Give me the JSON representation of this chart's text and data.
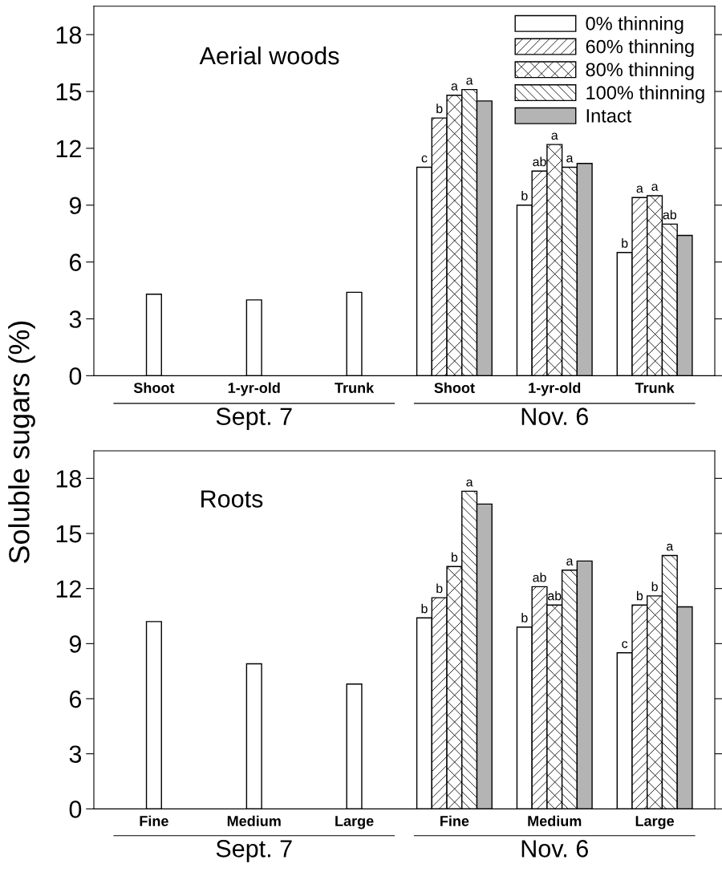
{
  "chart_data": [
    {
      "type": "bar",
      "ylabel": "Soluble sugars (%)",
      "categories": [
        "Shoot",
        "1-yr-old",
        "Trunk",
        "Shoot",
        "1-yr-old",
        "Trunk"
      ],
      "ylim": [
        0,
        19.5
      ],
      "yticks": [
        0,
        3,
        6,
        9,
        12,
        15,
        18
      ],
      "legend": "top right",
      "grid": false,
      "annotations": [
        "Aerial woods",
        "Sept. 7",
        "Nov. 6"
      ],
      "series": [
        {
          "name": "0% thinning",
          "color": "#ffffff",
          "values": [
            4.3,
            4.0,
            4.4,
            11.0,
            9.0,
            6.5
          ],
          "value_labels": [
            null,
            null,
            null,
            "c",
            "b",
            "b"
          ]
        },
        {
          "name": "60% thinning",
          "color": "#ffffff",
          "values": [
            null,
            null,
            null,
            13.6,
            10.8,
            9.4
          ],
          "value_labels": [
            null,
            null,
            null,
            "b",
            "ab",
            "a"
          ]
        },
        {
          "name": "80% thinning",
          "color": "#ffffff",
          "values": [
            null,
            null,
            null,
            14.8,
            12.2,
            9.5
          ],
          "value_labels": [
            null,
            null,
            null,
            "a",
            "a",
            "a"
          ]
        },
        {
          "name": "100% thinning",
          "color": "#ffffff",
          "values": [
            null,
            null,
            null,
            15.1,
            11.0,
            8.0
          ],
          "value_labels": [
            null,
            null,
            null,
            "a",
            "a",
            "ab"
          ]
        },
        {
          "name": "Intact",
          "color": "#b4b4b4",
          "values": [
            null,
            null,
            null,
            14.5,
            11.2,
            7.4
          ],
          "value_labels": [
            null,
            null,
            null,
            null,
            null,
            null
          ]
        }
      ]
    },
    {
      "type": "bar",
      "categories": [
        "Fine",
        "Medium",
        "Large",
        "Fine",
        "Medium",
        "Large"
      ],
      "ylim": [
        0,
        19.5
      ],
      "yticks": [
        0,
        3,
        6,
        9,
        12,
        15,
        18
      ],
      "legend": false,
      "grid": false,
      "annotations": [
        "Roots",
        "Sept. 7",
        "Nov. 6"
      ],
      "series": [
        {
          "color": "#ffffff",
          "values": [
            10.2,
            7.9,
            6.8,
            10.4,
            9.9,
            8.5
          ],
          "value_labels": [
            null,
            null,
            null,
            "b",
            "b",
            "c"
          ]
        },
        {
          "color": "#ffffff",
          "values": [
            null,
            null,
            null,
            11.5,
            12.1,
            11.1
          ],
          "value_labels": [
            null,
            null,
            null,
            "b",
            "ab",
            "b"
          ]
        },
        {
          "color": "#ffffff",
          "values": [
            null,
            null,
            null,
            13.2,
            11.1,
            11.6
          ],
          "value_labels": [
            null,
            null,
            null,
            "b",
            "ab",
            "b"
          ]
        },
        {
          "color": "#ffffff",
          "values": [
            null,
            null,
            null,
            17.3,
            13.0,
            13.8
          ],
          "value_labels": [
            null,
            null,
            null,
            "a",
            "a",
            "a"
          ]
        },
        {
          "color": "#b4b4b4",
          "values": [
            null,
            null,
            null,
            16.6,
            13.5,
            11.0
          ],
          "value_labels": [
            null,
            null,
            null,
            null,
            null,
            null
          ]
        }
      ]
    }
  ]
}
